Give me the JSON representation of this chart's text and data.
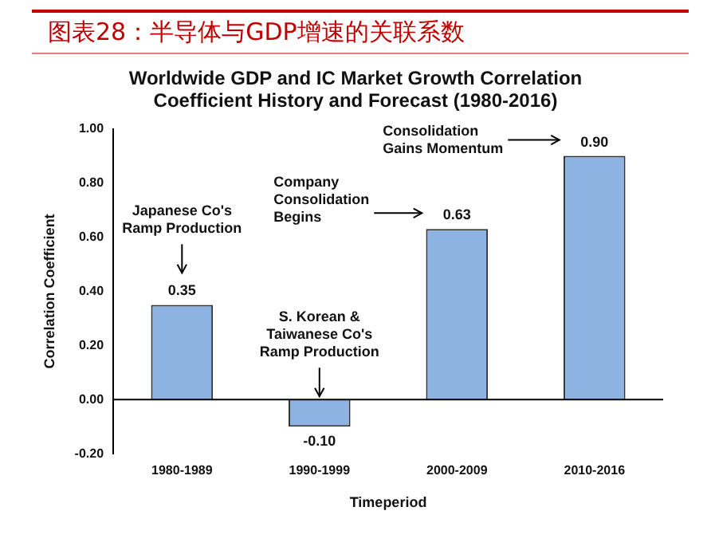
{
  "chart_data": {
    "type": "bar",
    "title": "图表28：半导体与GDP增速的关联系数",
    "subtitle": "Worldwide GDP and IC  Market Growth Correlation Coefficient History and Forecast (1980-2016)",
    "xlabel": "Timeperiod",
    "ylabel": "Correlation Coefficient",
    "categories": [
      "1980-1989",
      "1990-1999",
      "2000-2009",
      "2010-2016"
    ],
    "values": [
      0.35,
      -0.1,
      0.63,
      0.9
    ],
    "color": "#8db3e2",
    "data_labels": true,
    "value_labels": [
      "0.35",
      "-0.10",
      "0.63",
      "0.90"
    ],
    "ylim": [
      -0.2,
      1
    ],
    "yticks": [
      {
        "value": -0.2,
        "label": "-0.20"
      },
      {
        "value": 0,
        "label": "0.00"
      },
      {
        "value": 0.2,
        "label": "0.20"
      },
      {
        "value": 0.4,
        "label": "0.40"
      },
      {
        "value": 0.6,
        "label": "0.60"
      },
      {
        "value": 0.8,
        "label": "0.80"
      },
      {
        "value": 1,
        "label": "1.00"
      }
    ],
    "legend": false,
    "annotations": [
      "Japanese Co's Ramp Production",
      "S. Korean & Taiwanese Co's Ramp Production",
      "Company Consolidation Begins",
      "Consolidation Gains Momentum"
    ]
  }
}
